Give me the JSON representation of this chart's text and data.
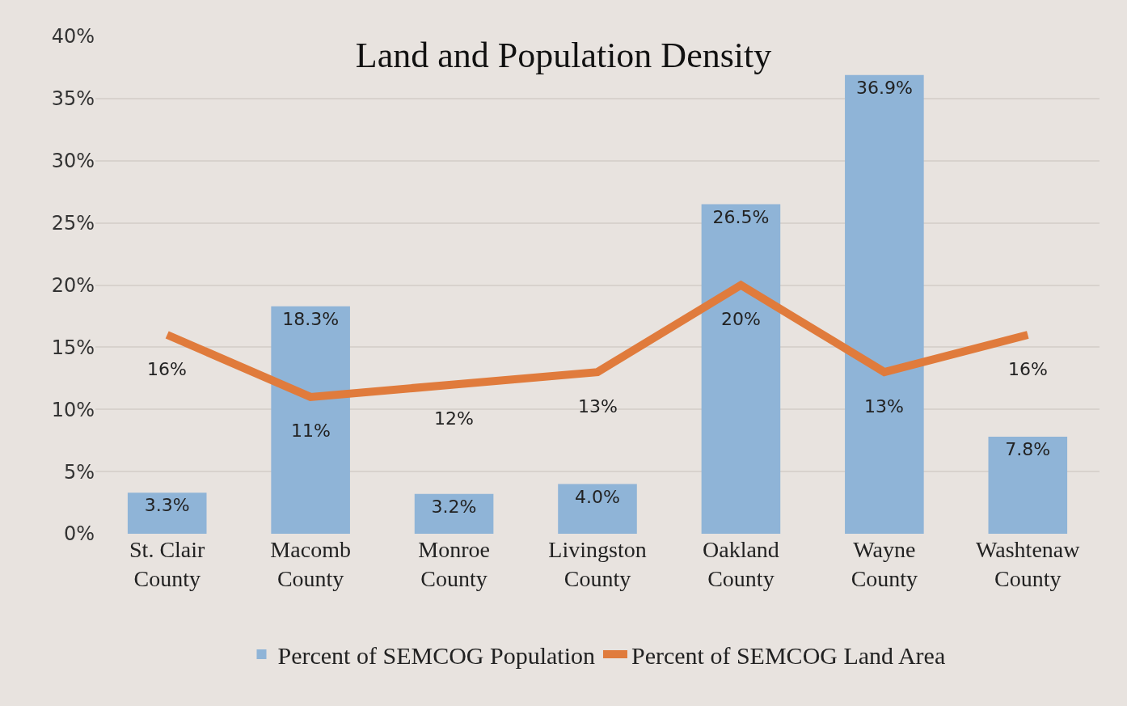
{
  "chart_data": {
    "type": "bar",
    "title": "Land and Population Density",
    "categories": [
      "St. Clair County",
      "Macomb County",
      "Monroe County",
      "Livingston County",
      "Oakland County",
      "Wayne County",
      "Washtenaw County"
    ],
    "series": [
      {
        "name": "Percent of SEMCOG Population",
        "color": "#8fb4d7",
        "values": [
          3.3,
          18.3,
          3.2,
          4.0,
          26.5,
          36.9,
          7.8
        ],
        "value_labels": [
          "3.3%",
          "18.3%",
          "3.2%",
          "4.0%",
          "26.5%",
          "36.9%",
          "7.8%"
        ]
      },
      {
        "name": "Percent of SEMCOG Land Area",
        "type": "line",
        "color": "#e07b3c",
        "values": [
          16,
          11,
          12,
          13,
          20,
          13,
          16
        ],
        "value_labels": [
          "16%",
          "11%",
          "12%",
          "13%",
          "20%",
          "13%",
          "16%"
        ]
      }
    ],
    "ylim": [
      0,
      40
    ],
    "yticks": [
      {
        "value": 0,
        "label": "0%"
      },
      {
        "value": 5,
        "label": "5%"
      },
      {
        "value": 10,
        "label": "10%"
      },
      {
        "value": 15,
        "label": "15%"
      },
      {
        "value": 20,
        "label": "20%"
      },
      {
        "value": 25,
        "label": "25%"
      },
      {
        "value": 30,
        "label": "30%"
      },
      {
        "value": 35,
        "label": "35%"
      },
      {
        "value": 40,
        "label": "40%"
      }
    ],
    "grid": true,
    "legend": "bottom",
    "marker": "none",
    "line_style": "solid"
  }
}
